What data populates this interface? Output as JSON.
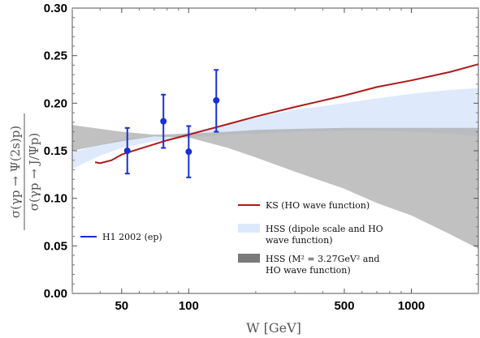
{
  "chart_data": {
    "type": "line",
    "title": "",
    "xlabel": "W [GeV]",
    "ylabel_top": "σ(γp → Ψ(2s)p)",
    "ylabel_bottom": "σ(γp → J/Ψp)",
    "x_scale": "log",
    "xlim": [
      30,
      2000
    ],
    "ylim": [
      0.0,
      0.3
    ],
    "x_ticks": [
      50,
      100,
      500,
      1000
    ],
    "x_tick_labels": [
      "50",
      "100",
      "500",
      "1000"
    ],
    "y_ticks": [
      0.0,
      0.05,
      0.1,
      0.15,
      0.2,
      0.25,
      0.3
    ],
    "y_tick_labels": [
      "0.00",
      "0.05",
      "0.10",
      "0.15",
      "0.20",
      "0.25",
      "0.30"
    ],
    "grid": false,
    "series": [
      {
        "name": "KS (HO wave function)",
        "kind": "line",
        "color": "#b01818",
        "x": [
          38,
          40,
          45,
          50,
          60,
          80,
          100,
          150,
          200,
          300,
          500,
          700,
          1000,
          1500,
          2000
        ],
        "y": [
          0.138,
          0.137,
          0.14,
          0.146,
          0.152,
          0.161,
          0.167,
          0.178,
          0.186,
          0.196,
          0.208,
          0.217,
          0.224,
          0.233,
          0.241
        ]
      },
      {
        "name": "HSS (dipole scale and HO wave function)",
        "kind": "band",
        "color": "#dce9fb",
        "x": [
          30,
          40,
          50,
          70,
          100,
          150,
          200,
          300,
          500,
          700,
          1000,
          1500,
          2000
        ],
        "upper": [
          0.148,
          0.157,
          0.162,
          0.165,
          0.169,
          0.178,
          0.185,
          0.193,
          0.2,
          0.205,
          0.21,
          0.214,
          0.216
        ],
        "lower": [
          0.131,
          0.145,
          0.153,
          0.16,
          0.164,
          0.167,
          0.168,
          0.17,
          0.171,
          0.171,
          0.17,
          0.168,
          0.165
        ]
      },
      {
        "name": "HSS (M² = 3.27GeV² and HO wave function)",
        "kind": "band",
        "color": "#a9a9a9",
        "x": [
          30,
          40,
          50,
          70,
          100,
          150,
          200,
          300,
          500,
          700,
          1000,
          1500,
          2000
        ],
        "upper": [
          0.177,
          0.173,
          0.17,
          0.167,
          0.168,
          0.17,
          0.172,
          0.173,
          0.174,
          0.174,
          0.174,
          0.174,
          0.174
        ],
        "lower": [
          0.15,
          0.156,
          0.16,
          0.165,
          0.164,
          0.153,
          0.143,
          0.128,
          0.11,
          0.095,
          0.082,
          0.062,
          0.047
        ]
      },
      {
        "name": "H1 2002 (ep)",
        "kind": "errorbar",
        "color": "#1a2fd6",
        "x": [
          53,
          77,
          100,
          133
        ],
        "y": [
          0.15,
          0.181,
          0.149,
          0.203
        ],
        "yerr_low": [
          0.024,
          0.028,
          0.027,
          0.033
        ],
        "yerr_high": [
          0.024,
          0.028,
          0.027,
          0.032
        ]
      }
    ],
    "legend": [
      {
        "label": "KS (HO wave function)",
        "swatch": "line",
        "color": "#b01818"
      },
      {
        "label_lines": [
          "HSS (dipole scale and HO",
          "wave function)"
        ],
        "swatch": "box",
        "color": "#dce9fb"
      },
      {
        "label_lines": [
          "HSS (M² = 3.27GeV² and",
          "HO wave function)"
        ],
        "swatch": "box",
        "color": "#7a7a7a"
      },
      {
        "label": "H1 2002 (ep)",
        "swatch": "line",
        "color": "#1a2fd6"
      }
    ]
  }
}
